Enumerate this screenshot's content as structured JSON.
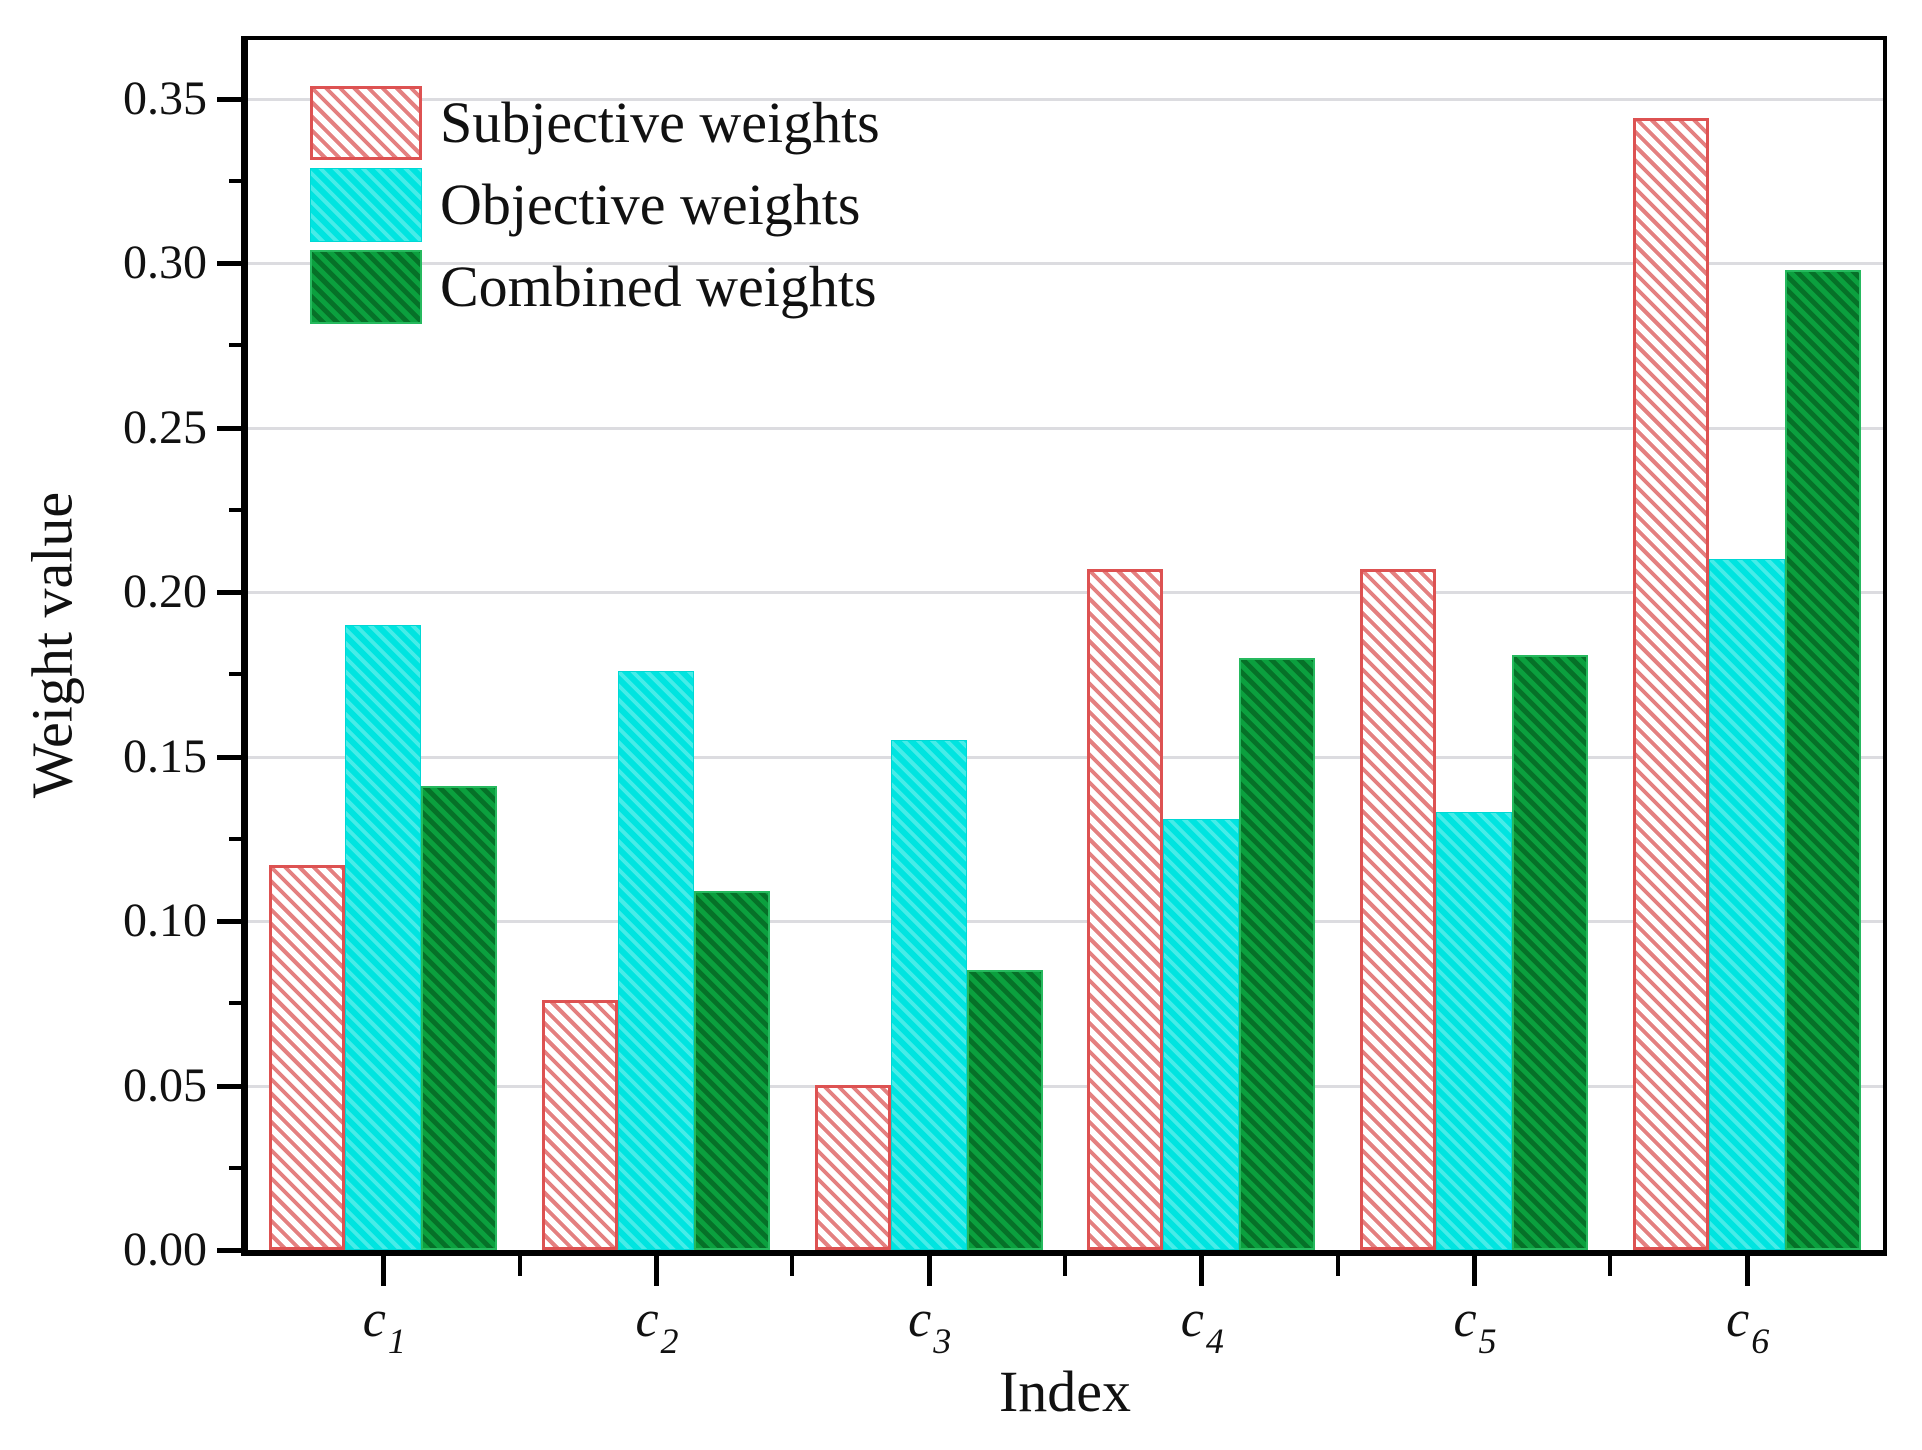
{
  "figure": {
    "background": "#ffffff",
    "frame_color": "#000000",
    "gridline_color": "#dcdce0"
  },
  "chart_data": {
    "type": "bar",
    "title": "",
    "xlabel": "Index",
    "ylabel": "Weight value",
    "categories": [
      {
        "base": "c",
        "sub": "1"
      },
      {
        "base": "c",
        "sub": "2"
      },
      {
        "base": "c",
        "sub": "3"
      },
      {
        "base": "c",
        "sub": "4"
      },
      {
        "base": "c",
        "sub": "5"
      },
      {
        "base": "c",
        "sub": "6"
      }
    ],
    "series": [
      {
        "name": "Subjective weights",
        "style": "red-hatch",
        "color": "#dd5252",
        "values": [
          0.117,
          0.076,
          0.05,
          0.207,
          0.207,
          0.344
        ]
      },
      {
        "name": "Objective weights",
        "style": "cyan",
        "color": "#00e4e0",
        "values": [
          0.19,
          0.176,
          0.155,
          0.131,
          0.133,
          0.21
        ]
      },
      {
        "name": "Combined weights",
        "style": "green-hatch",
        "color": "#0ba03e",
        "values": [
          0.141,
          0.109,
          0.085,
          0.18,
          0.181,
          0.298
        ]
      }
    ],
    "ylim": [
      0,
      0.368
    ],
    "ytick_step": 0.05,
    "ytick_labels": [
      "0.00",
      "0.05",
      "0.10",
      "0.15",
      "0.20",
      "0.25",
      "0.30",
      "0.35"
    ],
    "grid": "horizontal-major",
    "legend_position": "top-left"
  }
}
